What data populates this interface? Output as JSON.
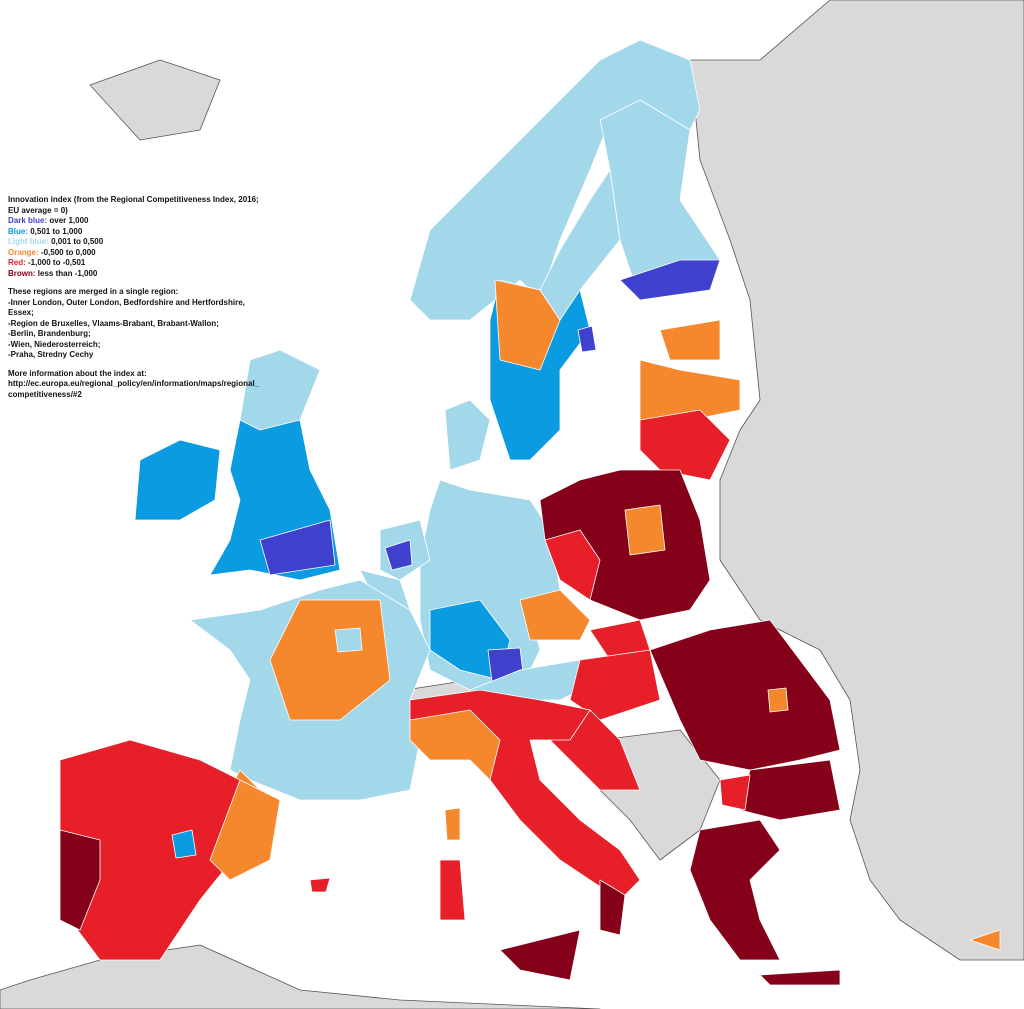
{
  "title": "Innovation index (from the Regional Competitiveness Index, 2016; EU average = 0)",
  "legend": [
    {
      "label": "Dark blue:",
      "range": "over 1,000",
      "color": "#4040cf"
    },
    {
      "label": "Blue:",
      "range": "0,501 to 1,000",
      "color": "#0a9be0"
    },
    {
      "label": "Light blue:",
      "range": "0,001 to 0,500",
      "color": "#a3d8ea"
    },
    {
      "label": "Orange:",
      "range": "-0,500 to 0,000",
      "color": "#f5872c"
    },
    {
      "label": "Red:",
      "range": "-1,000 to -0,501",
      "color": "#e61f29"
    },
    {
      "label": "Brown:",
      "range": "less than -1,000",
      "color": "#850019"
    }
  ],
  "merged_note": {
    "heading": "These regions are merged in a single region:",
    "items": [
      "-Inner London, Outer London, Bedfordshire and Hertfordshire, Essex;",
      "-Region de Bruxelles, Vlaams-Brabant, Brabant-Wallon;",
      "-Berlin, Brandenburg;",
      "-Wien, Niederosterreich;",
      "-Praha, Stredny Cechy"
    ]
  },
  "more_info": {
    "heading": "More information about the index at:",
    "url": "http://ec.europa.eu/regional_policy/en/information/maps/regional_competitiveness/#2"
  }
}
